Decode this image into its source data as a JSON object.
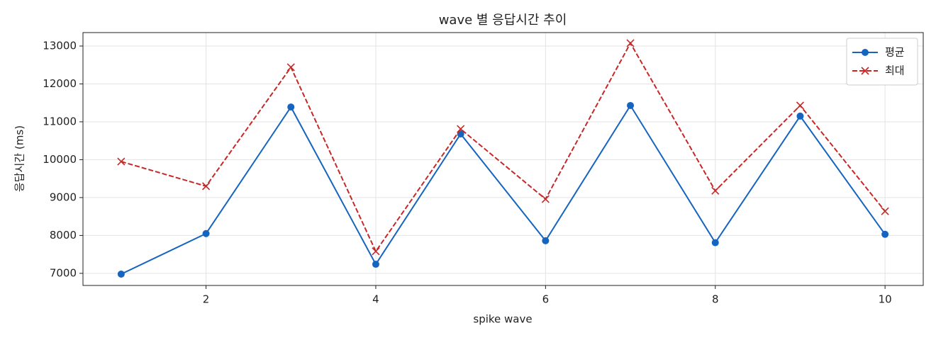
{
  "chart_data": {
    "type": "line",
    "title": "wave 별 응답시간 추이",
    "x_label": "spike wave",
    "y_label": "응답시간 (ms)",
    "x": [
      1,
      2,
      3,
      4,
      5,
      6,
      7,
      8,
      9,
      10
    ],
    "series": [
      {
        "name": "평균",
        "color": "#1565c0",
        "marker": "o",
        "linestyle": "-",
        "values": [
          6980,
          8050,
          11390,
          7240,
          10680,
          7860,
          11430,
          7810,
          11150,
          8030
        ]
      },
      {
        "name": "최대",
        "color": "#c62828",
        "marker": "x",
        "linestyle": "--",
        "values": [
          9950,
          9300,
          12440,
          7580,
          10810,
          8960,
          13075,
          9180,
          11430,
          8640
        ]
      }
    ],
    "xlim": [
      0.55,
      10.45
    ],
    "xticks": [
      2,
      4,
      6,
      8,
      10
    ],
    "ylim": [
      6680,
      13355
    ],
    "yticks": [
      7000,
      8000,
      9000,
      10000,
      11000,
      12000,
      13000
    ],
    "grid": true,
    "legend": "upper right"
  }
}
